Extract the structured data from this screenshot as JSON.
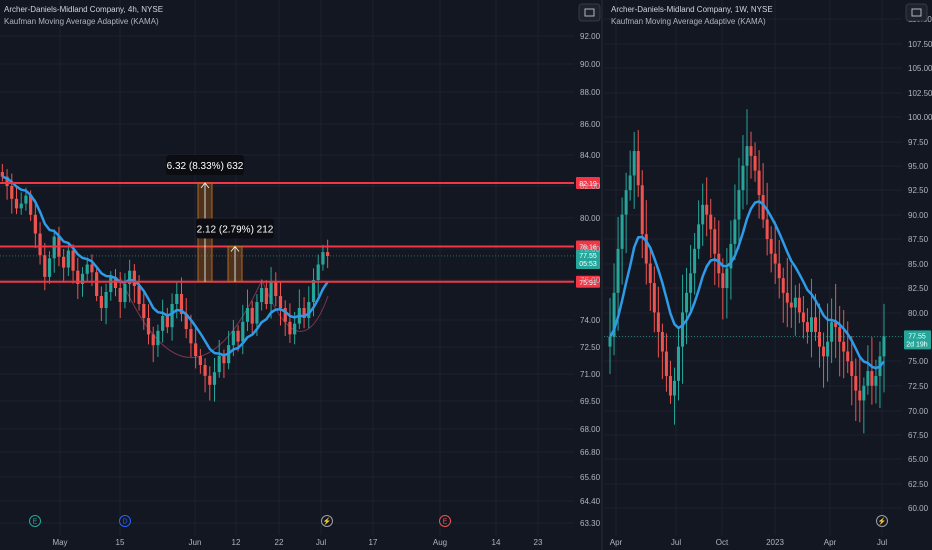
{
  "colors": {
    "background": "#131722",
    "up": "#26a69a",
    "down": "#ef5350",
    "kama": "#2f9be8",
    "level": "#f23645",
    "grid": "#1e222d",
    "axis_text": "#b2b5be",
    "measure": "#b8651a",
    "pattern": "#7a3550"
  },
  "left_chart": {
    "title": "Archer-Daniels-Midland Company, 4h, NYSE",
    "indicator": "Kaufman Moving Average Adaptive (KAMA)",
    "interval": "4h",
    "y_ticks": [
      "92.00",
      "90.00",
      "88.00",
      "86.00",
      "84.00",
      "82.00",
      "80.00",
      "78.00",
      "76.00",
      "74.00",
      "72.50",
      "71.00",
      "69.50",
      "68.00",
      "66.80",
      "65.60",
      "64.40",
      "63.30"
    ],
    "x_ticks": [
      "May",
      "15",
      "Jun",
      "12",
      "22",
      "Jul",
      "17",
      "Aug",
      "14",
      "23"
    ],
    "events": [
      {
        "label": "E",
        "kind": "earnings",
        "color": "#26a69a"
      },
      {
        "label": "D",
        "kind": "dividend",
        "color": "#2962ff"
      },
      {
        "label": "⚡",
        "kind": "split",
        "color": "#9c9fa8"
      },
      {
        "label": "E",
        "kind": "earnings",
        "color": "#ef5350"
      }
    ],
    "levels": [
      {
        "name": "resistance-top",
        "value": 82.19,
        "label": "82.19"
      },
      {
        "name": "resistance-mid",
        "value": 78.16,
        "label": "78.16"
      },
      {
        "name": "neckline",
        "value": 75.91,
        "label": "75.91"
      }
    ],
    "last_price": {
      "value": 77.55,
      "label": "77.55",
      "sub": "05:53"
    },
    "measures": [
      {
        "label": "6.32 (8.33%) 632",
        "from": 75.91,
        "to": 82.19
      },
      {
        "label": "2.12 (2.79%) 212",
        "from": 75.91,
        "to": 78.16
      }
    ]
  },
  "right_chart": {
    "title": "Archer-Daniels-Midland Company, 1W, NYSE",
    "indicator": "Kaufman Moving Average Adaptive (KAMA)",
    "interval": "1W",
    "y_ticks": [
      "110.00",
      "107.50",
      "105.00",
      "102.50",
      "100.00",
      "97.50",
      "95.00",
      "92.50",
      "90.00",
      "87.50",
      "85.00",
      "82.50",
      "80.00",
      "77.50",
      "75.00",
      "72.50",
      "70.00",
      "67.50",
      "65.00",
      "62.50",
      "60.00"
    ],
    "x_ticks": [
      "Apr",
      "Jul",
      "Oct",
      "2023",
      "Apr",
      "Jul"
    ],
    "events": [
      {
        "label": "⚡",
        "kind": "split",
        "color": "#9c9fa8"
      }
    ],
    "last_price": {
      "value": 77.55,
      "label": "77.55",
      "sub": "2d 19h"
    }
  },
  "chart_data": [
    {
      "type": "candlestick",
      "interval": "4h",
      "ylim": [
        63.3,
        92.0
      ],
      "title": "Archer-Daniels-Midland Company, 4h, NYSE",
      "close_path": [
        82.6,
        82.0,
        81.2,
        80.6,
        80.9,
        81.4,
        80.2,
        79.0,
        77.6,
        76.2,
        77.4,
        78.8,
        77.5,
        76.8,
        77.9,
        76.6,
        75.8,
        76.4,
        77.0,
        76.5,
        75.2,
        74.6,
        75.4,
        76.2,
        75.6,
        74.9,
        75.8,
        76.6,
        75.7,
        74.8,
        74.1,
        73.2,
        72.6,
        73.4,
        74.2,
        73.6,
        74.8,
        75.3,
        74.3,
        73.5,
        72.7,
        72.0,
        71.5,
        70.9,
        70.4,
        71.1,
        72.0,
        71.6,
        72.6,
        73.4,
        72.8,
        73.9,
        74.6,
        73.8,
        74.9,
        75.6,
        74.8,
        75.9,
        75.2,
        74.6,
        73.9,
        73.2,
        73.8,
        74.6,
        74.1,
        74.9,
        76.0,
        77.0,
        77.8,
        77.55
      ]
    },
    {
      "type": "candlestick",
      "interval": "1W",
      "ylim": [
        58.0,
        112.5
      ],
      "title": "Archer-Daniels-Midland Company, 1W, NYSE",
      "close_path": [
        77.5,
        82.0,
        86.5,
        90.0,
        92.5,
        94.0,
        96.5,
        93.0,
        88.0,
        85.0,
        83.0,
        80.0,
        78.0,
        76.0,
        73.5,
        71.5,
        73.0,
        76.5,
        80.0,
        82.0,
        84.0,
        86.5,
        89.0,
        91.0,
        90.0,
        88.5,
        86.0,
        84.0,
        82.5,
        84.5,
        87.0,
        89.5,
        92.5,
        95.0,
        97.0,
        96.0,
        94.5,
        92.0,
        89.5,
        87.5,
        86.0,
        85.0,
        83.5,
        82.0,
        81.0,
        80.5,
        81.5,
        80.0,
        79.0,
        78.0,
        79.5,
        78.0,
        76.5,
        75.5,
        77.0,
        79.0,
        78.5,
        77.0,
        76.0,
        75.0,
        73.5,
        72.0,
        71.0,
        72.5,
        74.0,
        72.5,
        73.5,
        75.5,
        77.55
      ]
    }
  ]
}
